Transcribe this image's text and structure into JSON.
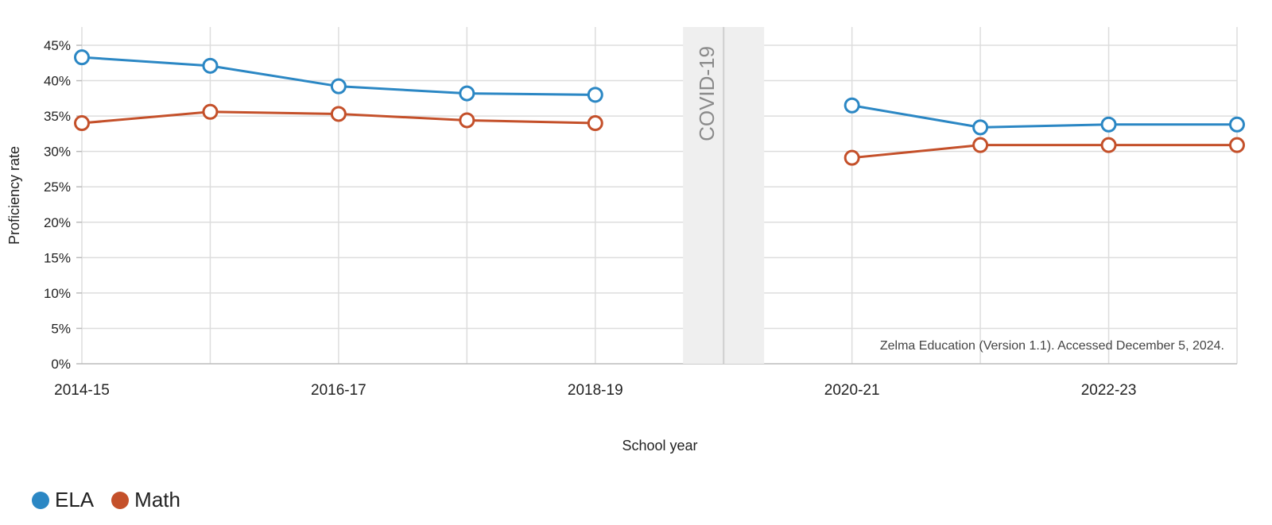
{
  "chart_data": {
    "type": "line",
    "x": [
      "2014-15",
      "2015-16",
      "2016-17",
      "2017-18",
      "2018-19",
      "2019-20",
      "2020-21",
      "2021-22",
      "2022-23",
      "2023-24"
    ],
    "x_tick_labels": [
      "2014-15",
      "2016-17",
      "2018-19",
      "2020-21",
      "2022-23"
    ],
    "series": [
      {
        "name": "ELA",
        "color": "#2b87c4",
        "values": [
          43.3,
          42.1,
          39.2,
          38.2,
          38.0,
          null,
          36.5,
          33.4,
          33.8,
          33.8
        ]
      },
      {
        "name": "Math",
        "color": "#c4502a",
        "values": [
          34.0,
          35.6,
          35.3,
          34.4,
          34.0,
          null,
          29.1,
          30.9,
          30.9,
          30.9
        ]
      }
    ],
    "xlabel": "School year",
    "ylabel": "Proficiency rate",
    "ylim": [
      0,
      45
    ],
    "y_ticks": [
      "0%",
      "5%",
      "10%",
      "15%",
      "20%",
      "25%",
      "30%",
      "35%",
      "40%",
      "45%"
    ],
    "grid": true,
    "legend_placement": "bottom-left",
    "annotations": {
      "covid_label": "COVID-19",
      "covid_year": "2019-20",
      "source": "Zelma Education (Version 1.1). Accessed December 5, 2024."
    }
  }
}
